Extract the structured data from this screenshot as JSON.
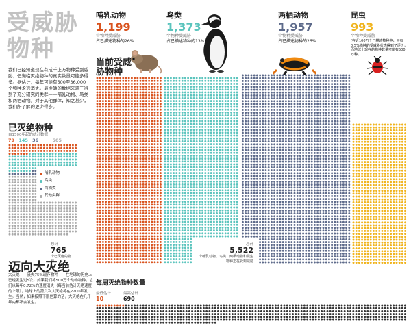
{
  "title": "受威胁物种",
  "intro": "我们已经知道现在有成千上万物种受到威胁，但濒临灭绝物种的真实数量可能多得多。据估计，每年可能有500至36,000个物种永远消失。最准确的数据来源于得到了充分研究的类群——哺乳动物、鸟类和两栖动物。对于其他群体，知之甚少，我们所了解的更少得多。",
  "categories": [
    {
      "name": "哺乳动物",
      "count": "1,199",
      "sub": "个物种受威胁",
      "note": "占已描述物种的26%",
      "color": "#d9531e"
    },
    {
      "name": "鸟类",
      "count": "1,373",
      "sub": "个物种受威胁",
      "note": "占已描述物种的13%",
      "color": "#5bc4bd"
    },
    {
      "name": "两栖动物",
      "count": "1,957",
      "sub": "个物种受威胁",
      "note": "占已描述物种的26%",
      "color": "#5d6a8a"
    },
    {
      "name": "昆虫",
      "count": "993",
      "sub": "个物种受威胁",
      "note": "(在近100万个已描述物种中，只有0.5%物种的受威胁状态得到了评价，而地球上现存的物种数量可能有500万种。)",
      "color": "#f0b41e"
    }
  ],
  "current_title": "当前受威胁物种",
  "extinct": {
    "title": "已灭绝物种",
    "subtitle": "自1500年起的统计数据",
    "counts": [
      {
        "value": "79",
        "color": "#d9531e"
      },
      {
        "value": "145",
        "color": "#5bc4bd"
      },
      {
        "value": "36",
        "color": "#5d6a8a"
      },
      {
        "value": "505",
        "color": "#aaaaaa"
      }
    ],
    "legend": [
      {
        "label": "哺乳动物",
        "color": "#d9531e"
      },
      {
        "label": "鸟类",
        "color": "#5bc4bd"
      },
      {
        "label": "两栖类",
        "color": "#5d6a8a"
      },
      {
        "label": "其他类群",
        "color": "#aaaaaa"
      }
    ],
    "total_label": "总计",
    "total_value": "765",
    "total_desc": "个已灭绝的物种"
  },
  "current_total": {
    "label": "总计",
    "value": "5,522",
    "desc": "个哺乳动物、鸟类、两栖动物和昆虫物种正在受到威胁"
  },
  "toward": {
    "title": "迈向大灭绝",
    "text": "大灭绝——丧失75%现存物种——在地球的历史上已经发生过5次。如果我们将500万个动物物种，它们以每年0.72%的速度消失（每当前估计灭绝速度的上限），地球上的第六次大灭绝将在2200年发生。当然，如果按照下限估算的话，大灭绝在几千年内都不会发生。"
  },
  "weekly": {
    "title": "每周灭绝物种数量",
    "min_label": "最低估计",
    "min_value": "10",
    "max_label": "最高估计",
    "max_value": "690"
  },
  "chart_data": {
    "type": "table",
    "title": "当前受威胁物种",
    "categories": [
      "哺乳动物",
      "鸟类",
      "两栖动物",
      "昆虫"
    ],
    "values": [
      1199,
      1373,
      1957,
      993
    ],
    "total": 5522,
    "extinct_since_1500": {
      "categories": [
        "哺乳动物",
        "鸟类",
        "两栖类",
        "其他类群"
      ],
      "values": [
        79,
        145,
        36,
        505
      ],
      "total": 765
    },
    "weekly_extinctions": {
      "min": 10,
      "max": 690
    }
  }
}
